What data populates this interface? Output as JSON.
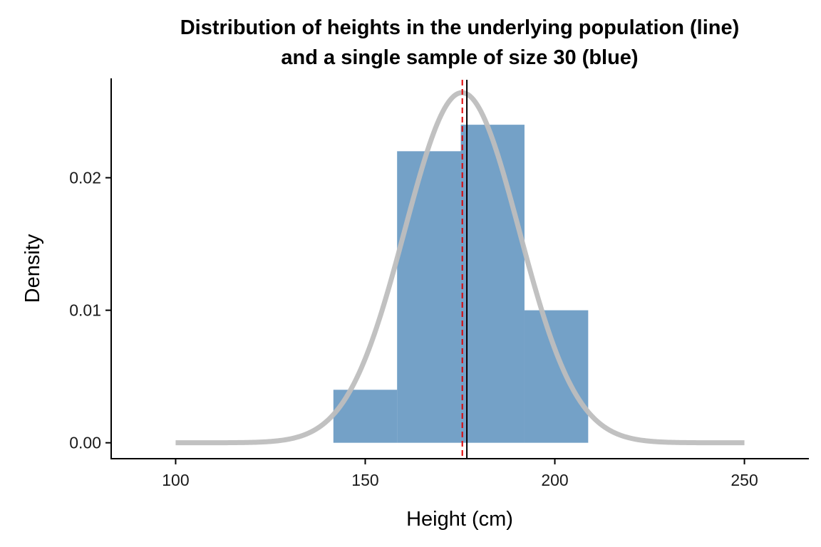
{
  "chart_data": {
    "type": "bar",
    "title_line1": "Distribution of heights in the underlying population (line)",
    "title_line2": "and a single sample of size 30 (blue)",
    "xlabel": "Height (cm)",
    "ylabel": "Density",
    "xlim": [
      83,
      267
    ],
    "ylim": [
      -0.0012,
      0.0275
    ],
    "x_ticks": [
      100,
      150,
      200,
      250
    ],
    "y_ticks": [
      0.0,
      0.01,
      0.02
    ],
    "y_tick_labels": [
      "0.00",
      "0.01",
      "0.02"
    ],
    "histogram": {
      "color": "#4682b4",
      "bins": [
        {
          "x0": 141.6,
          "x1": 158.4,
          "density": 0.004
        },
        {
          "x0": 158.4,
          "x1": 175.2,
          "density": 0.022
        },
        {
          "x0": 175.2,
          "x1": 192.0,
          "density": 0.024
        },
        {
          "x0": 192.0,
          "x1": 208.8,
          "density": 0.01
        }
      ]
    },
    "population_curve": {
      "distribution": "normal",
      "mean": 175.5,
      "sd": 15.1,
      "x_range": [
        100,
        250
      ],
      "color": "#bebebe"
    },
    "vlines": [
      {
        "x": 175.6,
        "color": "#e00000",
        "style": "dashed"
      },
      {
        "x": 176.8,
        "color": "#000000",
        "style": "solid"
      }
    ],
    "grid": false,
    "legend": "none"
  }
}
